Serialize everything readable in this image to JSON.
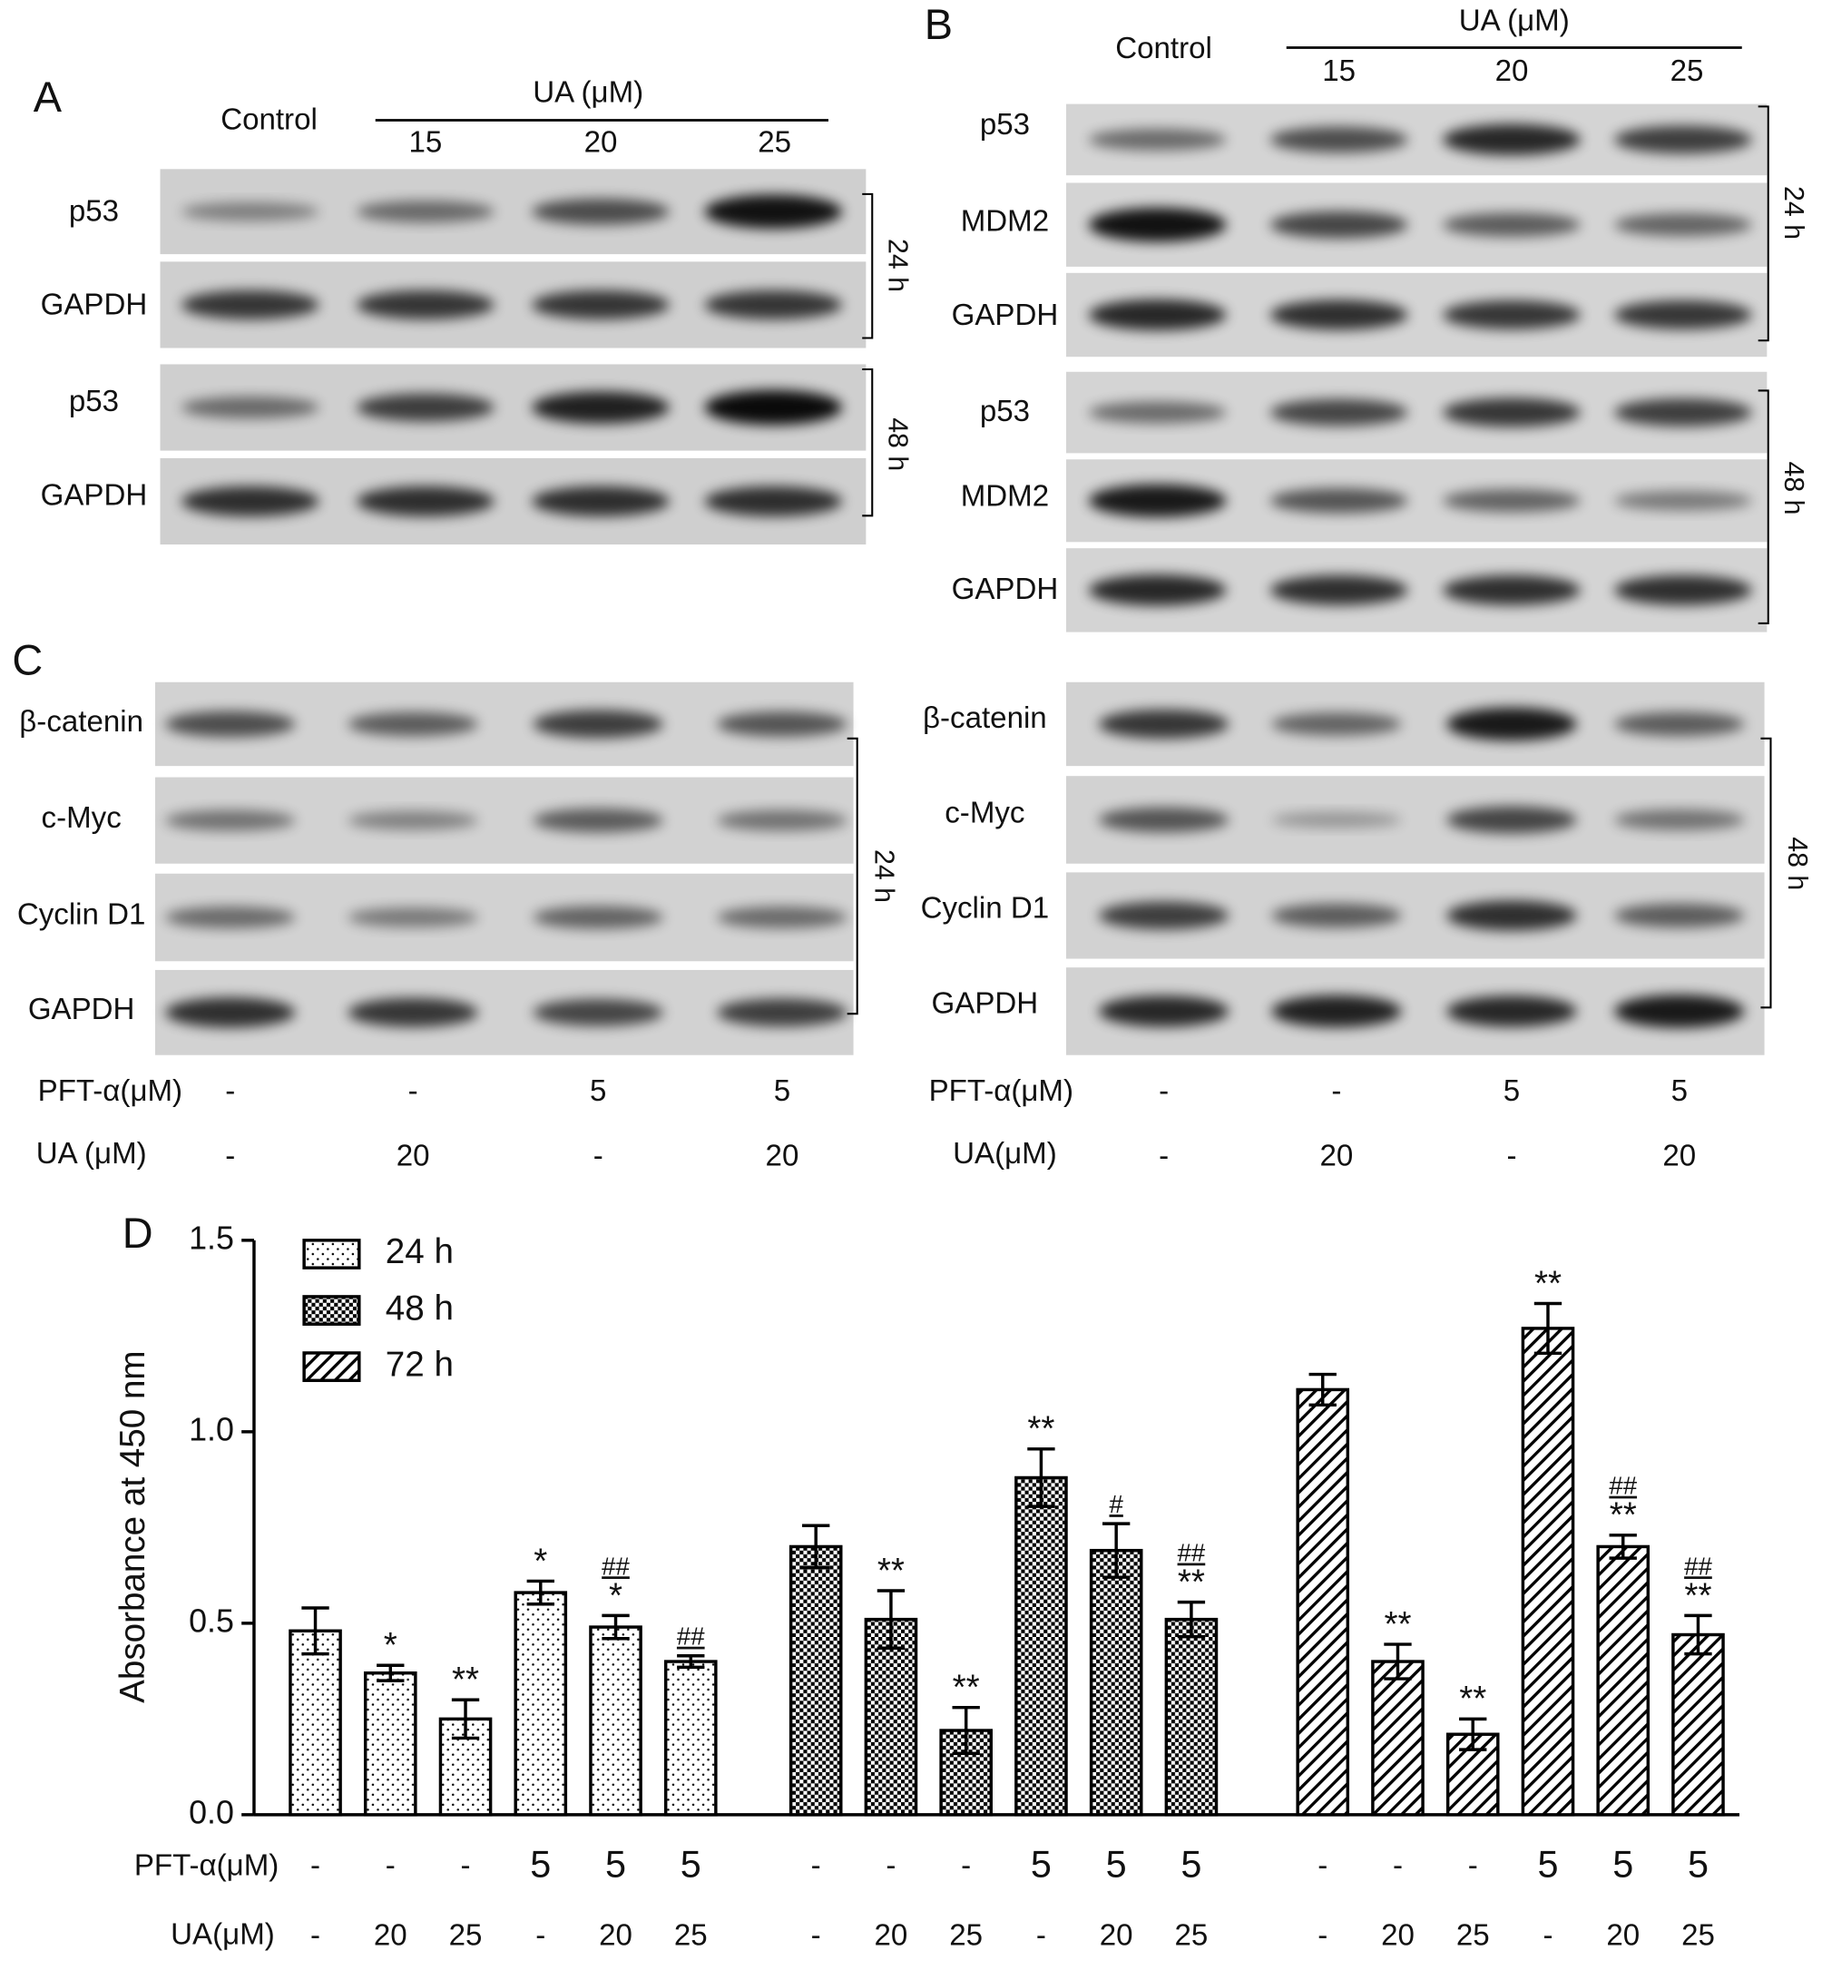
{
  "panel_a": {
    "label": "A",
    "header": {
      "control": "Control",
      "treatment": "UA (μM)",
      "doses": [
        "15",
        "20",
        "25"
      ]
    },
    "rows": [
      "p53",
      "GAPDH",
      "p53",
      "GAPDH"
    ],
    "times": [
      "24 h",
      "48 h"
    ]
  },
  "panel_b": {
    "label": "B",
    "header": {
      "control": "Control",
      "treatment": "UA (μM)",
      "doses": [
        "15",
        "20",
        "25"
      ]
    },
    "rows": [
      "p53",
      "MDM2",
      "GAPDH",
      "p53",
      "MDM2",
      "GAPDH"
    ],
    "times": [
      "24 h",
      "48 h"
    ]
  },
  "panel_c": {
    "label": "C",
    "left": {
      "rows": [
        "β-catenin",
        "c-Myc",
        "Cyclin D1",
        "GAPDH"
      ],
      "time": "24 h",
      "pft_label": "PFT-α(μM)",
      "pft": [
        "-",
        "-",
        "5",
        "5"
      ],
      "ua_label": "UA (μM)",
      "ua": [
        "-",
        "20",
        "-",
        "20"
      ]
    },
    "right": {
      "rows": [
        "β-catenin",
        "c-Myc",
        "Cyclin D1",
        "GAPDH"
      ],
      "time": "48 h",
      "pft_label": "PFT-α(μM)",
      "pft": [
        "-",
        "-",
        "5",
        "5"
      ],
      "ua_label": "UA(μM)",
      "ua": [
        "-",
        "20",
        "-",
        "20"
      ]
    }
  },
  "chart_data": {
    "type": "bar",
    "panel_label": "D",
    "y_label": "Absorbance at 450 nm",
    "ylim": [
      0,
      1.5
    ],
    "yticks": [
      {
        "value": 0,
        "label": "0.0"
      },
      0.5,
      {
        "value": 1,
        "label": "1.0"
      },
      1.5
    ],
    "x_rows": {
      "pft_label": "PFT-α(μM)",
      "pft": [
        "-",
        "-",
        "-",
        "5",
        "5",
        "5"
      ],
      "ua_label": "UA(μM)",
      "ua": [
        "-",
        "20",
        "25",
        "-",
        "20",
        "25"
      ]
    },
    "legend": "upper left",
    "series": [
      {
        "name": "24 h",
        "color": "#000000",
        "pattern": "dots",
        "values": [
          0.48,
          0.37,
          0.25,
          0.58,
          0.49,
          0.4
        ],
        "errors": [
          0.06,
          0.02,
          0.05,
          0.03,
          0.03,
          0.015
        ],
        "annotations": [
          null,
          [
            "*"
          ],
          [
            "**"
          ],
          [
            "*"
          ],
          [
            "##",
            "*"
          ],
          [
            "##"
          ]
        ]
      },
      {
        "name": "48 h",
        "color": "#000000",
        "pattern": "checker",
        "values": [
          0.7,
          0.51,
          0.22,
          0.88,
          0.69,
          0.51
        ],
        "errors": [
          0.055,
          0.075,
          0.06,
          0.075,
          0.07,
          0.045
        ],
        "annotations": [
          null,
          [
            "**"
          ],
          [
            "**"
          ],
          [
            "**"
          ],
          [
            "#"
          ],
          [
            "##",
            "**"
          ]
        ]
      },
      {
        "name": "72 h",
        "color": "#000000",
        "pattern": "hatch",
        "values": [
          1.11,
          0.4,
          0.21,
          1.27,
          0.7,
          0.47
        ],
        "errors": [
          0.04,
          0.045,
          0.04,
          0.065,
          0.03,
          0.05
        ],
        "annotations": [
          null,
          [
            "**"
          ],
          [
            "**"
          ],
          [
            "**"
          ],
          [
            "##",
            "**"
          ],
          [
            "##",
            "**"
          ]
        ]
      }
    ]
  }
}
